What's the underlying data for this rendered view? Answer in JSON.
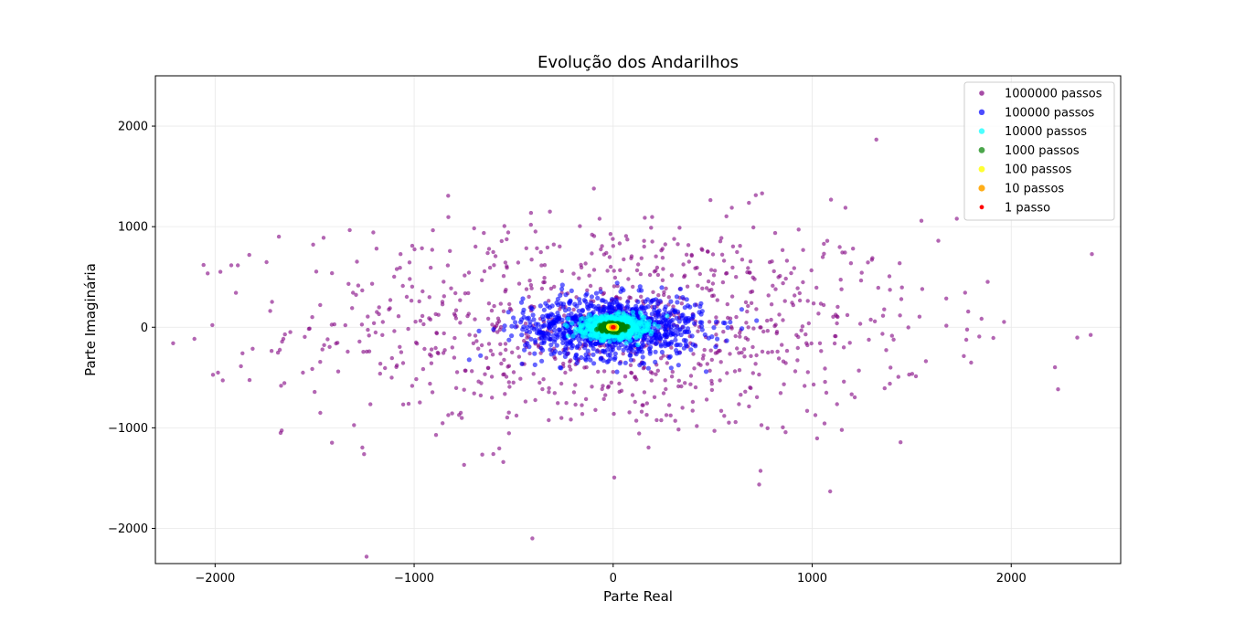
{
  "chart_data": {
    "type": "scatter",
    "title": "Evolução dos Andarilhos",
    "xlabel": "Parte Real",
    "ylabel": "Parte Imaginária",
    "xlim": [
      -2300,
      2550
    ],
    "ylim": [
      -2350,
      2500
    ],
    "xticks": [
      -2000,
      -1000,
      0,
      1000,
      2000
    ],
    "yticks": [
      -2000,
      -1000,
      0,
      1000,
      2000
    ],
    "xtick_labels": [
      "−2000",
      "−1000",
      "0",
      "1000",
      "2000"
    ],
    "ytick_labels": [
      "−2000",
      "−1000",
      "0",
      "1000",
      "2000"
    ],
    "grid": true,
    "legend_position": "top-right",
    "series": [
      {
        "name": "1000000 passos",
        "color": "#800080",
        "alpha": 0.6,
        "n_points": 1000,
        "spread": 800,
        "marker_size": 2.2
      },
      {
        "name": "100000 passos",
        "color": "#0000ff",
        "alpha": 0.6,
        "n_points": 1000,
        "spread": 225,
        "marker_size": 2.6
      },
      {
        "name": "10000 passos",
        "color": "#00ffff",
        "alpha": 0.6,
        "n_points": 1000,
        "spread": 75,
        "marker_size": 2.6
      },
      {
        "name": "1000 passos",
        "color": "#008000",
        "alpha": 0.6,
        "n_points": 1000,
        "spread": 23,
        "marker_size": 2.8
      },
      {
        "name": "100 passos",
        "color": "#ffff00",
        "alpha": 0.8,
        "n_points": 1000,
        "spread": 7,
        "marker_size": 2.8
      },
      {
        "name": "10 passos",
        "color": "#ffa500",
        "alpha": 0.9,
        "n_points": 1000,
        "spread": 2.5,
        "marker_size": 3
      },
      {
        "name": "1 passo",
        "color": "#ff0000",
        "alpha": 1.0,
        "n_points": 1000,
        "spread": 1,
        "marker_size": 1.8
      }
    ]
  }
}
